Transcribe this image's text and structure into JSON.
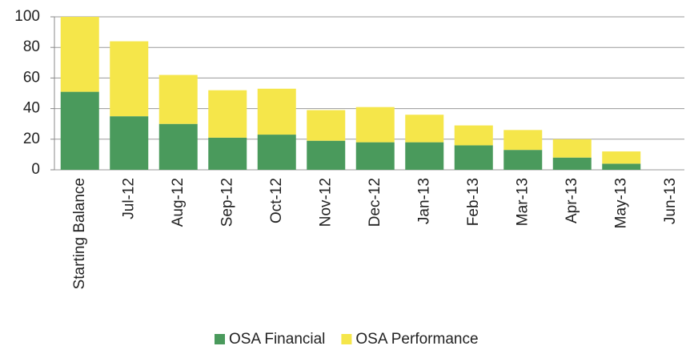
{
  "chart_data": {
    "type": "bar",
    "stacked": true,
    "categories": [
      "Starting Balance",
      "Jul-12",
      "Aug-12",
      "Sep-12",
      "Oct-12",
      "Nov-12",
      "Dec-12",
      "Jan-13",
      "Feb-13",
      "Mar-13",
      "Apr-13",
      "May-13",
      "Jun-13"
    ],
    "series": [
      {
        "name": "OSA Financial",
        "color": "#4a9a5c",
        "values": [
          51,
          35,
          30,
          21,
          23,
          19,
          18,
          18,
          16,
          13,
          8,
          4,
          0
        ]
      },
      {
        "name": "OSA Performance",
        "color": "#f5e64a",
        "values": [
          49,
          49,
          32,
          31,
          30,
          20,
          23,
          18,
          13,
          13,
          12,
          8,
          0
        ]
      }
    ],
    "ylim": [
      0,
      100
    ],
    "yticks": [
      0,
      20,
      40,
      60,
      80,
      100
    ],
    "grid": true,
    "legend": "bottom"
  }
}
